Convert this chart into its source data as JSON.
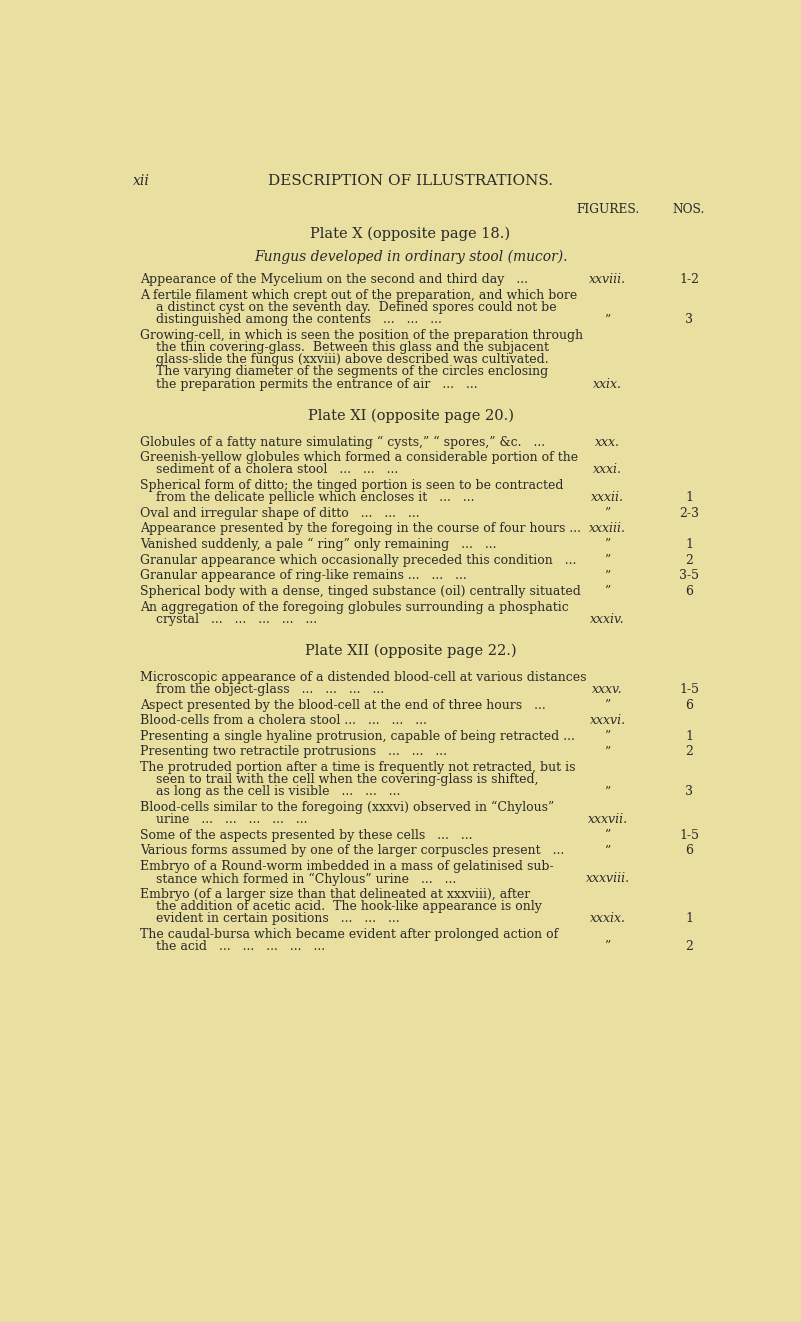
{
  "bg_color": "#e8dfa0",
  "text_color": "#2a2a2a",
  "page_num": "xii",
  "header": "DESCRIPTION OF ILLUSTRATIONS.",
  "figures_label": "FIGURES.",
  "nos_label": "NOS.",
  "sections": [
    {
      "title": "Plate X (opposite page 18.)",
      "subtitle": "Fungus developed in ordinary stool (mucor).",
      "entries": [
        {
          "lines": [
            "Appearance of the Mycelium on the second and third day   ..."
          ],
          "figure": "xxviii.",
          "nos": "1-2"
        },
        {
          "lines": [
            "A fertile filament which crept out of the preparation, and which bore",
            "    a distinct cyst on the seventh day.  Defined spores could not be",
            "    distinguished among the contents   ...   ...   ..."
          ],
          "figure": "”",
          "nos": "3"
        },
        {
          "lines": [
            "Growing-cell, in which is seen the position of the preparation through",
            "    the thin covering-glass.  Between this glass and the subjacent",
            "    glass-slide the fungus (xxviii) above described was cultivated.",
            "    The varying diameter of the segments of the circles enclosing",
            "    the preparation permits the entrance of air   ...   ..."
          ],
          "figure": "xxix.",
          "nos": ""
        }
      ]
    },
    {
      "title": "Plate XI (opposite page 20.)",
      "subtitle": "",
      "entries": [
        {
          "lines": [
            "Globules of a fatty nature simulating “ cysts,” “ spores,” &c.   ..."
          ],
          "figure": "xxx.",
          "nos": ""
        },
        {
          "lines": [
            "Greenish-yellow globules which formed a considerable portion of the",
            "    sediment of a cholera stool   ...   ...   ..."
          ],
          "figure": "xxxi.",
          "nos": ""
        },
        {
          "lines": [
            "Spherical form of ditto; the tinged portion is seen to be contracted",
            "    from the delicate pellicle which encloses it   ...   ..."
          ],
          "figure": "xxxii.",
          "nos": "1"
        },
        {
          "lines": [
            "Oval and irregular shape of ditto   ...   ...   ..."
          ],
          "figure": "”",
          "nos": "2-3"
        },
        {
          "lines": [
            "Appearance presented by the foregoing in the course of four hours ..."
          ],
          "figure": "xxxiii.",
          "nos": ""
        },
        {
          "lines": [
            "Vanished suddenly, a pale “ ring” only remaining   ...   ..."
          ],
          "figure": "”",
          "nos": "1"
        },
        {
          "lines": [
            "Granular appearance which occasionally preceded this condition   ..."
          ],
          "figure": "”",
          "nos": "2"
        },
        {
          "lines": [
            "Granular appearance of ring-like remains ...   ...   ..."
          ],
          "figure": "”",
          "nos": "3-5"
        },
        {
          "lines": [
            "Spherical body with a dense, tinged substance (oil) centrally situated"
          ],
          "figure": "”",
          "nos": "6"
        },
        {
          "lines": [
            "An aggregation of the foregoing globules surrounding a phosphatic",
            "    crystal   ...   ...   ...   ...   ..."
          ],
          "figure": "xxxiv.",
          "nos": ""
        }
      ]
    },
    {
      "title": "Plate XII (opposite page 22.)",
      "subtitle": "",
      "entries": [
        {
          "lines": [
            "Microscopic appearance of a distended blood-cell at various distances",
            "    from the object-glass   ...   ...   ...   ..."
          ],
          "figure": "xxxv.",
          "nos": "1-5"
        },
        {
          "lines": [
            "Aspect presented by the blood-cell at the end of three hours   ..."
          ],
          "figure": "”",
          "nos": "6"
        },
        {
          "lines": [
            "Blood-cells from a cholera stool ...   ...   ...   ..."
          ],
          "figure": "xxxvi.",
          "nos": ""
        },
        {
          "lines": [
            "Presenting a single hyaline protrusion, capable of being retracted ..."
          ],
          "figure": "”",
          "nos": "1"
        },
        {
          "lines": [
            "Presenting two retractile protrusions   ...   ...   ..."
          ],
          "figure": "”",
          "nos": "2"
        },
        {
          "lines": [
            "The protruded portion after a time is frequently not retracted, but is",
            "    seen to trail with the cell when the covering-glass is shifted,",
            "    as long as the cell is visible   ...   ...   ..."
          ],
          "figure": "”",
          "nos": "3"
        },
        {
          "lines": [
            "Blood-cells similar to the foregoing (xxxvi) observed in “Chylous”",
            "    urine   ...   ...   ...   ...   ..."
          ],
          "figure": "xxxvii.",
          "nos": ""
        },
        {
          "lines": [
            "Some of the aspects presented by these cells   ...   ..."
          ],
          "figure": "”",
          "nos": "1-5"
        },
        {
          "lines": [
            "Various forms assumed by one of the larger corpuscles present   ..."
          ],
          "figure": "”",
          "nos": "6"
        },
        {
          "lines": [
            "Embryo of a Round-worm imbedded in a mass of gelatinised sub-",
            "    stance which formed in “Chylous” urine   ...   ..."
          ],
          "figure": "xxxviii.",
          "nos": ""
        },
        {
          "lines": [
            "Embryo (of a larger size than that delineated at xxxviii), after",
            "    the addition of acetic acid.  The hook-like appearance is only",
            "    evident in certain positions   ...   ...   ..."
          ],
          "figure": "xxxix.",
          "nos": "1"
        },
        {
          "lines": [
            "The caudal-bursa which became evident after prolonged action of",
            "    the acid   ...   ...   ...   ...   ..."
          ],
          "figure": "”",
          "nos": "2"
        }
      ]
    }
  ]
}
